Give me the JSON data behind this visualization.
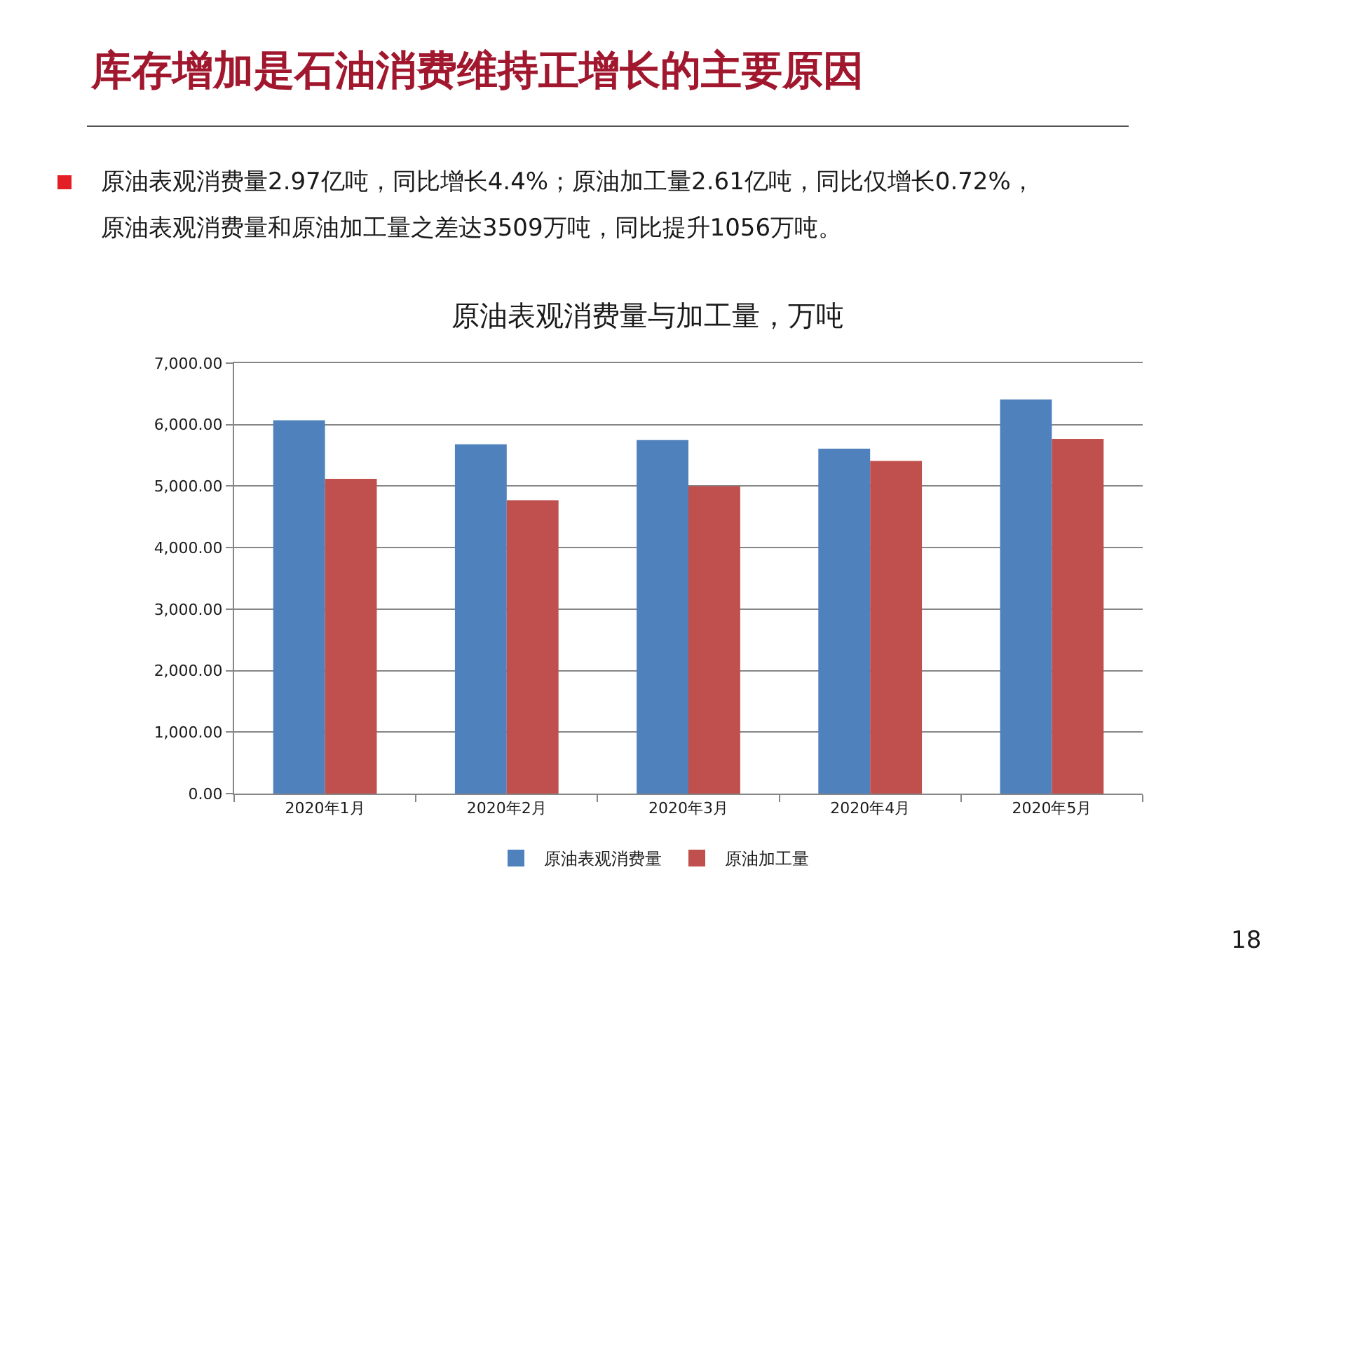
{
  "chart_data": {
    "type": "bar",
    "title": "原油表观消费量与加工量，万吨",
    "categories": [
      "2020年1月",
      "2020年2月",
      "2020年3月",
      "2020年4月",
      "2020年5月"
    ],
    "series": [
      {
        "name": "原油表观消费量",
        "color": "#4f81bd",
        "values": [
          6070,
          5680,
          5750,
          5610,
          6410
        ]
      },
      {
        "name": "原油加工量",
        "color": "#c0504d",
        "values": [
          5120,
          4770,
          5000,
          5410,
          5770
        ]
      }
    ],
    "ylim": [
      0,
      7000
    ],
    "yticks": [
      {
        "value": 0,
        "label": "0.00"
      },
      {
        "value": 1000,
        "label": "1,000.00"
      },
      {
        "value": 2000,
        "label": "2,000.00"
      },
      {
        "value": 3000,
        "label": "3,000.00"
      },
      {
        "value": 4000,
        "label": "4,000.00"
      },
      {
        "value": 5000,
        "label": "5,000.00"
      },
      {
        "value": 6000,
        "label": "6,000.00"
      },
      {
        "value": 7000,
        "label": "7,000.00"
      }
    ],
    "grid": "y",
    "legend": "bottom",
    "annotations": [
      "库存增加是石油消费维持正增长的主要原因",
      "原油表观消费量2.97亿吨，同比增长4.4%；原油加工量2.61亿吨，同比仅增长0.72%，",
      "原油表观消费量和原油加工量之差达3509万吨，同比提升1056万吨。",
      "18"
    ]
  }
}
